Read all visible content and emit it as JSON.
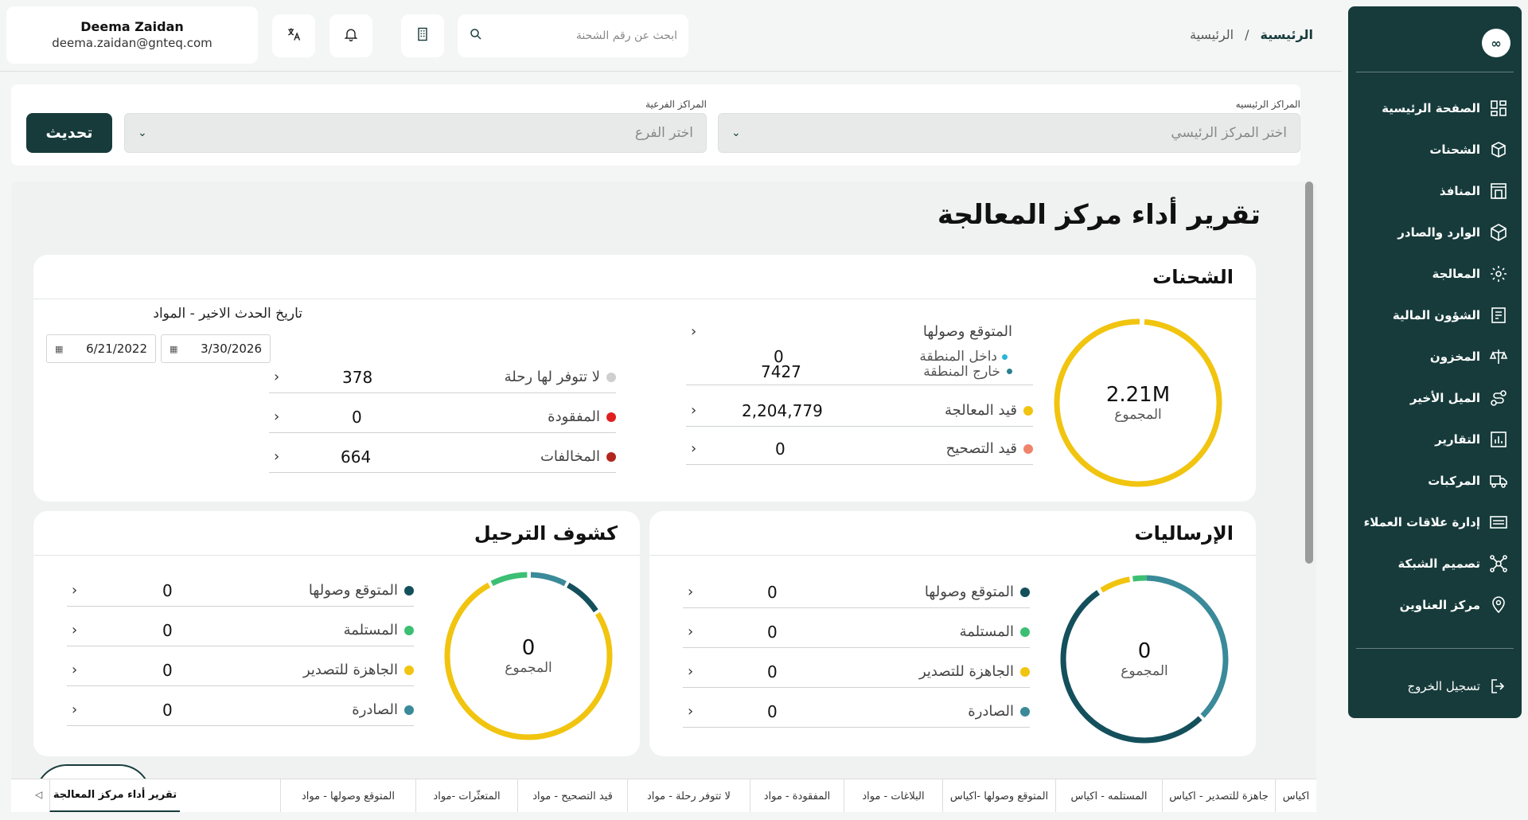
{
  "user": {
    "name": "Deema Zaidan",
    "email": "deema.zaidan@gnteq.com"
  },
  "search": {
    "placeholder": "ابحث عن رقم الشحنة"
  },
  "breadcrumb": {
    "current": "الرئيسية",
    "sep": "/",
    "parent": "الرئيسية"
  },
  "sidebar": {
    "logo": "∞",
    "items": [
      {
        "label": "الصفحة الرئيسية",
        "icon": "dashboard-icon"
      },
      {
        "label": "الشحنات",
        "icon": "package-icon"
      },
      {
        "label": "المنافذ",
        "icon": "gate-icon"
      },
      {
        "label": "الوارد والصادر",
        "icon": "box-icon"
      },
      {
        "label": "المعالجة",
        "icon": "gear-icon"
      },
      {
        "label": "الشؤون المالية",
        "icon": "invoice-icon"
      },
      {
        "label": "المخزون",
        "icon": "scale-icon"
      },
      {
        "label": "الميل الأخير",
        "icon": "route-icon"
      },
      {
        "label": "التقارير",
        "icon": "report-icon"
      },
      {
        "label": "المركبات",
        "icon": "truck-icon"
      },
      {
        "label": "إدارة علاقات العملاء",
        "icon": "crm-icon"
      },
      {
        "label": "تصميم الشبكة",
        "icon": "network-icon"
      },
      {
        "label": "مركز العناوين",
        "icon": "location-icon"
      }
    ],
    "logout": "تسجيل الخروج"
  },
  "filters": {
    "main_label": "المراكز الرئيسيه",
    "main_placeholder": "اختر المركز الرئيسي",
    "branch_label": "المراكز الفرعية",
    "branch_placeholder": "اختر الفرع",
    "update_button": "تحديث"
  },
  "report": {
    "title": "تقرير أداء مركز المعالجة",
    "shipments": {
      "title": "الشحنات",
      "total_value": "2.21M",
      "total_label": "المجموع",
      "expected_label": "المتوقع وصولها",
      "inside_label": "داخل المنطقة",
      "inside_value": "0",
      "outside_label": "خارج المنطقة",
      "outside_value": "7427",
      "processing_label": "قيد المعالجة",
      "processing_value": "2,204,779",
      "correction_label": "قيد التصحيح",
      "correction_value": "0",
      "last_event_title": "تاريخ الحدث الاخير - المواد",
      "date_from": "3/30/2026",
      "date_to": "6/21/2022",
      "no_trip_label": "لا تتوفر لها رحلة",
      "no_trip_value": "378",
      "lost_label": "المفقودة",
      "lost_value": "0",
      "violations_label": "المخالفات",
      "violations_value": "664",
      "colors": {
        "processing": "#f1c40f",
        "correction": "#f0836c",
        "no_trip": "#cfcfcf",
        "lost": "#e02020",
        "violations": "#b3261e",
        "inside": "#29b6d8",
        "outside": "#2a7f8f"
      }
    },
    "consignments": {
      "title": "الإرساليات",
      "total_value": "0",
      "total_label": "المجموع",
      "rows": [
        {
          "label": "المتوقع وصولها",
          "value": "0",
          "color": "#14505c"
        },
        {
          "label": "المستلمة",
          "value": "0",
          "color": "#3cbf73"
        },
        {
          "label": "الجاهزة للتصدير",
          "value": "0",
          "color": "#f1c40f"
        },
        {
          "label": "الصادرة",
          "value": "0",
          "color": "#3a8a99"
        }
      ]
    },
    "manifests": {
      "title": "كشوف الترحيل",
      "total_value": "0",
      "total_label": "المجموع",
      "rows": [
        {
          "label": "المتوقع وصولها",
          "value": "0",
          "color": "#14505c"
        },
        {
          "label": "المستلمة",
          "value": "0",
          "color": "#3cbf73"
        },
        {
          "label": "الجاهزة للتصدير",
          "value": "0",
          "color": "#f1c40f"
        },
        {
          "label": "الصادرة",
          "value": "0",
          "color": "#3a8a99"
        }
      ]
    }
  },
  "tabs": [
    "اكياس",
    "جاهزة للتصدير - اكياس",
    "المستلمه - اكياس",
    "المتوقع وصولها -اكياس",
    "البلاغات - مواد",
    "المفقودة - مواد",
    "لا تتوفر رحلة - مواد",
    "قيد التصحيح - مواد",
    "المتعثّرات -مواد",
    "المتوقع وصولها - مواد",
    "تقرير أداء مركز المعالجة"
  ]
}
